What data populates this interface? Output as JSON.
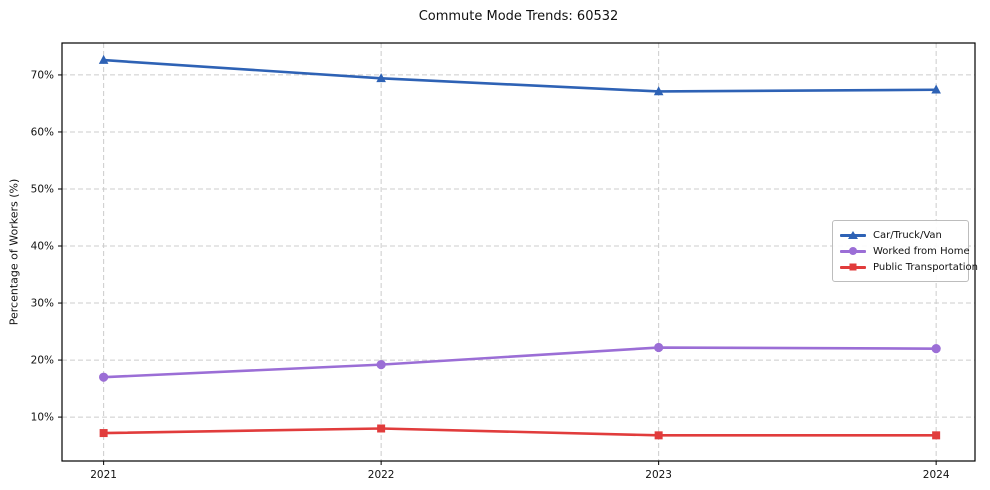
{
  "page": {
    "background": "#ffffff"
  },
  "chart_data": {
    "type": "line",
    "title": "Commute Mode Trends: 60532",
    "xlabel": "",
    "ylabel": "Percentage of Workers (%)",
    "x": [
      2021,
      2022,
      2023,
      2024
    ],
    "x_tick_labels": [
      "2021",
      "2022",
      "2023",
      "2024"
    ],
    "y_ticks": [
      10,
      20,
      30,
      40,
      50,
      60,
      70
    ],
    "y_tick_labels": [
      "10%",
      "20%",
      "30%",
      "40%",
      "50%",
      "60%",
      "70%"
    ],
    "xlim": [
      2020.85,
      2024.14
    ],
    "ylim": [
      2.3,
      75.6
    ],
    "grid": "dashed, both axes",
    "legend_position": "center-right",
    "series": [
      {
        "name": "Car/Truck/Van",
        "marker": "triangle",
        "color": "#2e62b5",
        "values": [
          72.6,
          69.4,
          67.1,
          67.4
        ]
      },
      {
        "name": "Worked from Home",
        "marker": "circle",
        "color": "#9b6ed6",
        "values": [
          17.0,
          19.2,
          22.2,
          22.0
        ]
      },
      {
        "name": "Public Transportation",
        "marker": "square",
        "color": "#e13c3c",
        "values": [
          7.2,
          8.0,
          6.8,
          6.8
        ]
      }
    ],
    "colors": {
      "grid": "#cccccc",
      "axis": "#000000",
      "tick_text": "#111111"
    }
  }
}
